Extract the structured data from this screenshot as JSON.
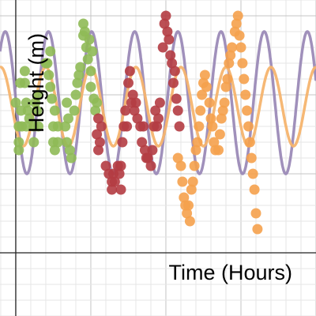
{
  "chart_data": {
    "type": "scatter",
    "xlabel": "Time (Hours)",
    "ylabel": "Height (m)",
    "xlim": [
      -0.42,
      8
    ],
    "ylim": [
      -1.6,
      6.4
    ],
    "grid": true,
    "grid_step": 0.4,
    "major_grid_step": 2,
    "curves": [
      {
        "type": "line",
        "color": "#9b8ab7",
        "y_mid": 3.8,
        "amplitude": 1.8,
        "period": 1.15,
        "phase_x": -0.28
      },
      {
        "type": "line",
        "color": "#f5b46e",
        "y_mid": 3.7,
        "amplitude": 1.0,
        "period": 1.2,
        "phase_x": -0.4
      }
    ],
    "series": [
      {
        "color": "#8fba57",
        "points": [
          [
            0.0,
            3.8
          ],
          [
            0.08,
            3.2
          ],
          [
            0.08,
            2.8
          ],
          [
            0.08,
            2.6
          ],
          [
            0.12,
            4.3
          ],
          [
            0.14,
            3.6
          ],
          [
            0.16,
            3.2
          ],
          [
            0.24,
            4.6
          ],
          [
            0.24,
            4.3
          ],
          [
            0.28,
            3.8
          ],
          [
            0.28,
            3.2
          ],
          [
            0.32,
            3.6
          ],
          [
            0.36,
            3.4
          ],
          [
            0.48,
            3.2
          ],
          [
            0.48,
            2.8
          ],
          [
            0.52,
            3.8
          ],
          [
            0.56,
            3.6
          ],
          [
            0.6,
            4.0
          ],
          [
            0.6,
            3.2
          ],
          [
            0.8,
            4.8
          ],
          [
            0.84,
            4.8
          ],
          [
            0.88,
            4.5
          ],
          [
            0.92,
            5.1
          ],
          [
            0.92,
            4.2
          ],
          [
            0.96,
            3.9
          ],
          [
            1.0,
            3.2
          ],
          [
            1.0,
            2.8
          ],
          [
            1.04,
            3.6
          ],
          [
            1.04,
            2.6
          ],
          [
            1.12,
            3.2
          ],
          [
            1.12,
            2.8
          ],
          [
            1.32,
            3.2
          ],
          [
            1.36,
            3.8
          ],
          [
            1.36,
            2.8
          ],
          [
            1.4,
            3.4
          ],
          [
            1.44,
            2.6
          ],
          [
            1.48,
            2.4
          ],
          [
            1.56,
            3.6
          ],
          [
            1.6,
            4.0
          ],
          [
            1.64,
            4.3
          ],
          [
            1.68,
            4.5
          ],
          [
            1.72,
            4.7
          ],
          [
            1.8,
            5.5
          ],
          [
            1.8,
            5.8
          ],
          [
            1.84,
            5.6
          ],
          [
            1.88,
            5.2
          ],
          [
            1.92,
            4.9
          ],
          [
            1.96,
            5.4
          ],
          [
            2.0,
            4.6
          ],
          [
            2.0,
            4.2
          ],
          [
            2.04,
            5.1
          ],
          [
            2.08,
            3.9
          ],
          [
            2.12,
            3.6
          ],
          [
            2.16,
            3.8
          ]
        ]
      },
      {
        "color": "#b43c42",
        "points": [
          [
            2.16,
            3.0
          ],
          [
            2.2,
            3.4
          ],
          [
            2.2,
            2.6
          ],
          [
            2.24,
            2.8
          ],
          [
            2.28,
            3.2
          ],
          [
            2.4,
            2.2
          ],
          [
            2.48,
            2.0
          ],
          [
            2.56,
            1.8
          ],
          [
            2.56,
            1.6
          ],
          [
            2.6,
            2.0
          ],
          [
            2.64,
            1.8
          ],
          [
            2.72,
            2.2
          ],
          [
            2.76,
            2.0
          ],
          [
            2.8,
            1.6
          ],
          [
            2.8,
            2.2
          ],
          [
            2.84,
            2.8
          ],
          [
            2.88,
            3.2
          ],
          [
            2.92,
            3.6
          ],
          [
            2.96,
            3.2
          ],
          [
            3.0,
            4.3
          ],
          [
            3.04,
            4.6
          ],
          [
            3.08,
            3.8
          ],
          [
            3.12,
            4.0
          ],
          [
            3.16,
            3.6
          ],
          [
            3.2,
            3.8
          ],
          [
            3.24,
            3.4
          ],
          [
            3.32,
            3.2
          ],
          [
            3.36,
            2.8
          ],
          [
            3.4,
            3.2
          ],
          [
            3.44,
            2.6
          ],
          [
            3.48,
            2.4
          ],
          [
            3.52,
            2.4
          ],
          [
            3.6,
            2.2
          ],
          [
            3.64,
            2.6
          ],
          [
            3.68,
            3.2
          ],
          [
            3.72,
            3.6
          ],
          [
            3.76,
            3.2
          ],
          [
            3.8,
            3.4
          ],
          [
            3.84,
            3.8
          ],
          [
            3.92,
            5.2
          ],
          [
            3.96,
            5.8
          ],
          [
            4.0,
            6.0
          ],
          [
            4.04,
            5.6
          ],
          [
            4.08,
            5.4
          ],
          [
            4.12,
            5.0
          ],
          [
            4.16,
            4.8
          ],
          [
            4.2,
            4.3
          ],
          [
            4.24,
            4.6
          ],
          [
            4.28,
            3.9
          ],
          [
            4.32,
            3.6
          ],
          [
            4.36,
            3.2
          ]
        ]
      },
      {
        "color": "#f5a14c",
        "points": [
          [
            4.32,
            2.4
          ],
          [
            4.4,
            2.2
          ],
          [
            4.44,
            1.8
          ],
          [
            4.48,
            1.4
          ],
          [
            4.52,
            1.2
          ],
          [
            4.56,
            1.0
          ],
          [
            4.6,
            1.2
          ],
          [
            4.64,
            0.8
          ],
          [
            4.68,
            1.6
          ],
          [
            4.72,
            1.8
          ],
          [
            4.76,
            2.2
          ],
          [
            4.8,
            2.6
          ],
          [
            4.84,
            2.8
          ],
          [
            4.88,
            3.2
          ],
          [
            4.92,
            3.6
          ],
          [
            4.96,
            4.0
          ],
          [
            5.0,
            4.3
          ],
          [
            5.04,
            4.5
          ],
          [
            5.08,
            4.2
          ],
          [
            5.16,
            3.8
          ],
          [
            5.2,
            3.4
          ],
          [
            5.24,
            3.2
          ],
          [
            5.28,
            2.8
          ],
          [
            5.32,
            2.6
          ],
          [
            5.4,
            2.6
          ],
          [
            5.44,
            3.0
          ],
          [
            5.48,
            3.4
          ],
          [
            5.52,
            3.6
          ],
          [
            5.56,
            3.8
          ],
          [
            5.6,
            4.2
          ],
          [
            5.64,
            4.4
          ],
          [
            5.68,
            4.8
          ],
          [
            5.72,
            5.0
          ],
          [
            5.76,
            5.2
          ],
          [
            5.84,
            5.6
          ],
          [
            5.88,
            5.8
          ],
          [
            5.92,
            6.0
          ],
          [
            5.96,
            5.5
          ],
          [
            6.0,
            5.2
          ],
          [
            6.04,
            4.8
          ],
          [
            6.08,
            4.4
          ],
          [
            6.12,
            4.0
          ],
          [
            6.16,
            3.6
          ],
          [
            6.2,
            3.2
          ],
          [
            6.24,
            2.8
          ],
          [
            6.28,
            2.4
          ],
          [
            6.32,
            2.0
          ],
          [
            6.36,
            1.6
          ],
          [
            6.4,
            1.0
          ],
          [
            6.44,
            0.6
          ]
        ]
      }
    ]
  }
}
